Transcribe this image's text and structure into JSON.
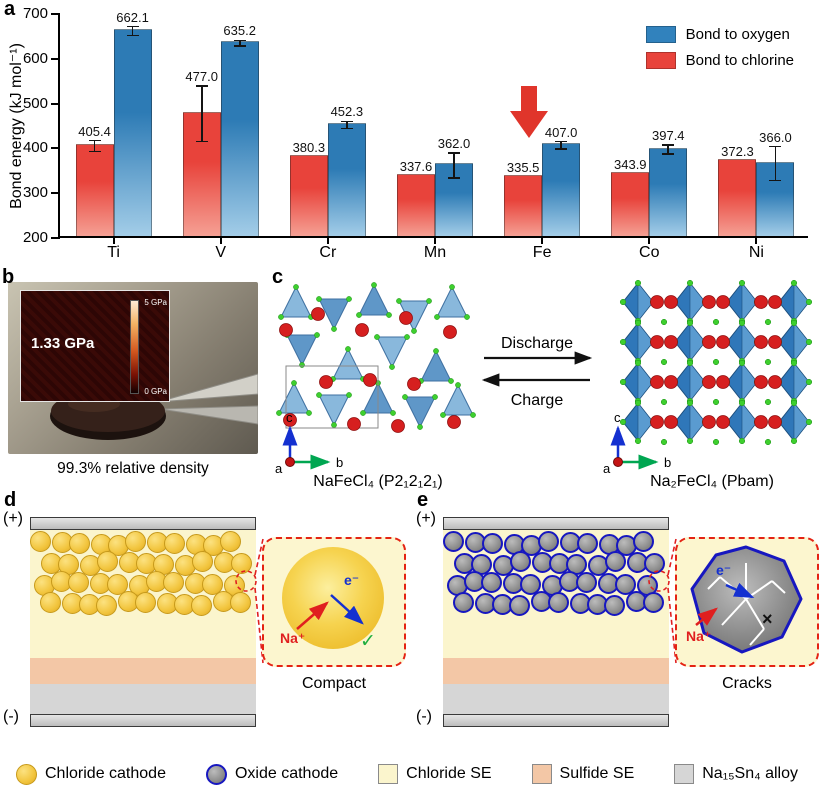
{
  "figure": {
    "panels": {
      "a": "a",
      "b": "b",
      "c": "c",
      "d": "d",
      "e": "e"
    }
  },
  "chart_data": {
    "type": "bar",
    "title": "",
    "ylabel": "Bond energy (kJ mol⁻¹)",
    "xlabel": "",
    "ylim": [
      200,
      700
    ],
    "yticks": [
      200,
      300,
      400,
      500,
      600,
      700
    ],
    "categories": [
      "Ti",
      "V",
      "Cr",
      "Mn",
      "Fe",
      "Co",
      "Ni"
    ],
    "series": [
      {
        "name": "Bond to chlorine",
        "color": "#e8433b",
        "color_light": "#f5a094",
        "values": [
          405.4,
          477.0,
          380.3,
          337.6,
          335.5,
          343.9,
          372.3
        ],
        "errors": [
          12,
          62,
          0,
          0,
          0,
          0,
          0
        ]
      },
      {
        "name": "Bond to oxygen",
        "color": "#2d7bb5",
        "color_light": "#a3cde8",
        "values": [
          662.1,
          635.2,
          452.3,
          362.0,
          407.0,
          397.4,
          366.0
        ],
        "errors": [
          10,
          6,
          8,
          28,
          8,
          10,
          38
        ]
      }
    ],
    "legend": [
      {
        "label": "Bond to oxygen",
        "color": "#3182bd"
      },
      {
        "label": "Bond to chlorine",
        "color": "#e8433b"
      }
    ],
    "legend_position": "top-right",
    "grid": false,
    "annotations": [
      {
        "type": "arrow-down",
        "category": "Fe",
        "color": "#e0352b"
      }
    ]
  },
  "panel_b": {
    "modulus": "1.33 GPa",
    "scale_max": "5 GPa",
    "scale_min": "0 GPa",
    "caption": "99.3% relative density"
  },
  "panel_c": {
    "forward": "Discharge",
    "reverse": "Charge",
    "left_formula": "NaFeCl₄ (P2₁2₁2₁)",
    "right_formula": "Na₂FeCl₄ (Pbam)",
    "axis_a": "a",
    "axis_b": "b",
    "axis_c": "c"
  },
  "panel_d": {
    "positive": "(+)",
    "negative": "(-)",
    "ion": "Na⁺",
    "electron": "e⁻",
    "mark": "✓",
    "caption": "Compact"
  },
  "panel_e": {
    "positive": "(+)",
    "negative": "(-)",
    "ion": "Na⁺",
    "electron": "e⁻",
    "mark": "×",
    "caption": "Cracks"
  },
  "bottom_legend": {
    "items": [
      {
        "label": "Chloride cathode",
        "swatch": "yellow-circle"
      },
      {
        "label": "Oxide cathode",
        "swatch": "gray-circle-blue-border"
      },
      {
        "label": "Chloride SE",
        "swatch": "pale-yellow-square"
      },
      {
        "label": "Sulfide SE",
        "swatch": "salmon-square"
      },
      {
        "label": "Na₁₅Sn₄ alloy",
        "swatch": "gray-square"
      }
    ]
  }
}
